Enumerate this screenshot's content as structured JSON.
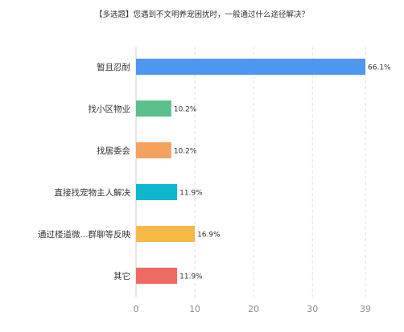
{
  "chart_data": {
    "type": "bar",
    "orientation": "horizontal",
    "title": "【多选题】您遇到不文明养宠困扰时，一般通过什么途径解决？",
    "categories": [
      "暂且忍耐",
      "找小区物业",
      "找居委会",
      "直接找宠物主人解决",
      "通过楼道微...群聊等反映",
      "其它"
    ],
    "values": [
      39,
      6,
      6,
      7,
      10,
      7
    ],
    "value_labels": [
      "66.1%",
      "10.2%",
      "10.2%",
      "11.9%",
      "16.9%",
      "11.9%"
    ],
    "colors": [
      "#4e97f0",
      "#5bc08b",
      "#f5a15f",
      "#0eb7cf",
      "#f6b947",
      "#ef6b62"
    ],
    "xlim": [
      0,
      39
    ],
    "xticks": [
      0,
      10,
      20,
      30,
      39
    ],
    "xtick_labels": [
      "0",
      "10",
      "20",
      "30",
      "39"
    ],
    "grid": true
  }
}
